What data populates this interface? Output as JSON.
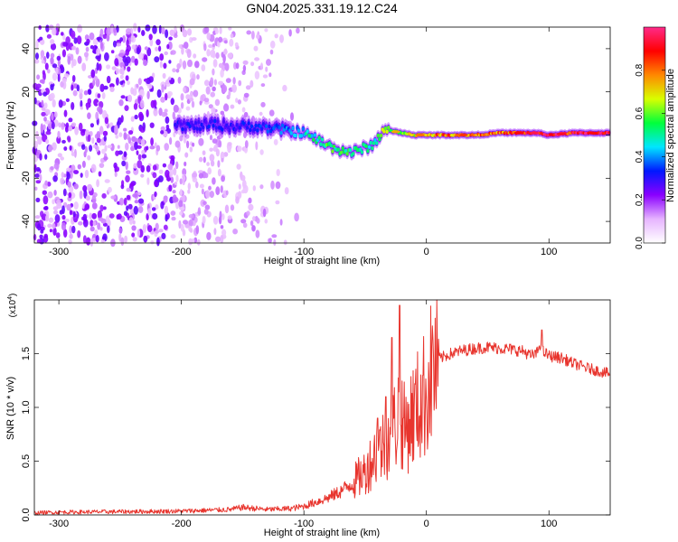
{
  "figure": {
    "title": "GN04.2025.331.19.12.C24"
  },
  "colorbar": {
    "label": "Normalized spectral amplitude",
    "ticks": [
      0.0,
      0.2,
      0.4,
      0.6,
      0.8
    ],
    "tick_labels": [
      "0.0",
      "0.2",
      "0.4",
      "0.6",
      "0.8"
    ],
    "range": [
      0,
      1
    ],
    "colors": [
      "#ffffff",
      "#e6b4ff",
      "#8a00ff",
      "#0018ff",
      "#00e6ff",
      "#00ff3c",
      "#d8ff00",
      "#ff8800",
      "#ff0000",
      "#ff2a8a"
    ]
  },
  "chart_data": [
    {
      "type": "heatmap",
      "title": "GN04.2025.331.19.12.C24",
      "xlabel": "Height of straight line (km)",
      "ylabel": "Frequency (Hz)",
      "xlim": [
        -320,
        150
      ],
      "ylim": [
        -50,
        50
      ],
      "xticks": [
        -300,
        -200,
        -100,
        0,
        100
      ],
      "xtick_labels": [
        "-300",
        "-200",
        "-100",
        "0",
        "100"
      ],
      "yticks": [
        -40,
        -20,
        0,
        20,
        40
      ],
      "ytick_labels": [
        "-40",
        "-20",
        "0",
        "20",
        "40"
      ],
      "signal_track": {
        "x": [
          -205,
          -190,
          -175,
          -160,
          -140,
          -125,
          -110,
          -100,
          -90,
          -80,
          -70,
          -60,
          -50,
          -42,
          -35,
          -30,
          -20,
          -10,
          0,
          20,
          40,
          60,
          80,
          90,
          100,
          120,
          150
        ],
        "freq": [
          5,
          4,
          5,
          4,
          4,
          3,
          2,
          1,
          -2,
          -5,
          -7,
          -8,
          -6,
          -4,
          3,
          2,
          1,
          0,
          0,
          0,
          0,
          1,
          1,
          1,
          0,
          1,
          1
        ],
        "amplitude": [
          0.3,
          0.3,
          0.3,
          0.3,
          0.3,
          0.35,
          0.4,
          0.45,
          0.5,
          0.55,
          0.55,
          0.5,
          0.5,
          0.5,
          0.6,
          0.6,
          0.65,
          0.7,
          0.75,
          0.8,
          0.8,
          0.8,
          0.85,
          0.95,
          0.95,
          0.9,
          0.9
        ]
      },
      "noise_region": {
        "x_range": [
          -320,
          -120
        ],
        "amplitude": 0.2
      }
    },
    {
      "type": "line",
      "xlabel": "Height of straight line (km)",
      "ylabel": "SNR (10 * v/v)",
      "y_multiplier_label": "(x10",
      "y_multiplier_exp": "4",
      "y_multiplier_close": ")",
      "xlim": [
        -320,
        150
      ],
      "ylim": [
        0,
        20000
      ],
      "xticks": [
        -300,
        -200,
        -100,
        0,
        100
      ],
      "xtick_labels": [
        "-300",
        "-200",
        "-100",
        "0",
        "100"
      ],
      "yticks": [
        0,
        5000,
        10000,
        15000
      ],
      "ytick_labels": [
        "0.0",
        "0.5",
        "1.0",
        "1.5"
      ],
      "series": [
        {
          "name": "SNR",
          "color": "#e8352e",
          "x": [
            -320,
            -300,
            -250,
            -200,
            -160,
            -150,
            -130,
            -110,
            -100,
            -90,
            -80,
            -70,
            -60,
            -50,
            -45,
            -40,
            -35,
            -30,
            -25,
            -22,
            -18,
            -15,
            -10,
            -5,
            0,
            5,
            10,
            20,
            30,
            40,
            50,
            60,
            70,
            80,
            85,
            90,
            93,
            95,
            100,
            110,
            120,
            130,
            140,
            150
          ],
          "y": [
            200,
            250,
            300,
            350,
            500,
            700,
            500,
            600,
            800,
            1200,
            1600,
            2200,
            3000,
            4000,
            5000,
            6000,
            6500,
            7500,
            8500,
            10000,
            8000,
            8500,
            9500,
            10500,
            11500,
            13500,
            14500,
            15000,
            15300,
            15500,
            15600,
            15500,
            15400,
            15200,
            14800,
            15000,
            16000,
            15200,
            14800,
            14600,
            14100,
            13700,
            13400,
            13100
          ]
        }
      ],
      "spikes": [
        {
          "x": -22,
          "y": 19500
        },
        {
          "x": -28,
          "y": 16500
        },
        {
          "x": -33,
          "y": 11000
        },
        {
          "x": -40,
          "y": 9000
        },
        {
          "x": 94,
          "y": 17200
        }
      ]
    }
  ]
}
